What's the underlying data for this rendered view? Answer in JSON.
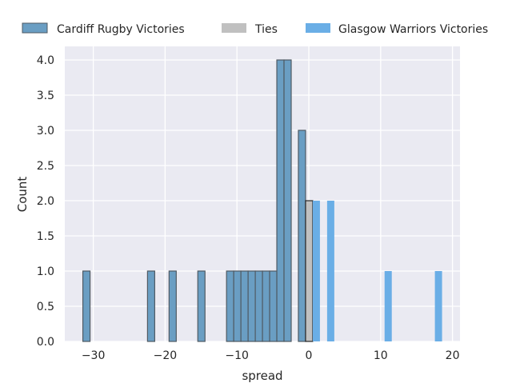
{
  "chart_data": {
    "type": "bar",
    "title": "",
    "xlabel": "spread",
    "ylabel": "Count",
    "xlim": [
      -34,
      21
    ],
    "ylim": [
      0,
      4.2
    ],
    "bin_width": 1,
    "grid": true,
    "legend_position": "top",
    "xticks": [
      -30,
      -20,
      -10,
      0,
      10,
      20
    ],
    "xtick_labels": [
      "−30",
      "−20",
      "−10",
      "0",
      "10",
      "20"
    ],
    "yticks": [
      0,
      0.5,
      1,
      1.5,
      2,
      2.5,
      3,
      3.5,
      4
    ],
    "ytick_labels": [
      "0.0",
      "0.5",
      "1.0",
      "1.5",
      "2.0",
      "2.5",
      "3.0",
      "3.5",
      "4.0"
    ],
    "series": [
      {
        "name": "Cardiff Rugby Victories",
        "color": "#6a9ec3",
        "edge": "#4f5a63",
        "bins": [
          {
            "x": -31,
            "count": 1
          },
          {
            "x": -22,
            "count": 1
          },
          {
            "x": -19,
            "count": 1
          },
          {
            "x": -15,
            "count": 1
          },
          {
            "x": -11,
            "count": 1
          },
          {
            "x": -10,
            "count": 1
          },
          {
            "x": -9,
            "count": 1
          },
          {
            "x": -8,
            "count": 1
          },
          {
            "x": -7,
            "count": 1
          },
          {
            "x": -6,
            "count": 1
          },
          {
            "x": -5,
            "count": 1
          },
          {
            "x": -4,
            "count": 4
          },
          {
            "x": -3,
            "count": 4
          },
          {
            "x": -1,
            "count": 3
          }
        ]
      },
      {
        "name": "Ties",
        "color": "#c0c0c0",
        "edge": "#262626",
        "bins": [
          {
            "x": 0,
            "count": 2
          }
        ]
      },
      {
        "name": "Glasgow Warriors Victories",
        "color": "#6aaee6",
        "edge": "none",
        "bins": [
          {
            "x": 1,
            "count": 2
          },
          {
            "x": 3,
            "count": 2
          },
          {
            "x": 11,
            "count": 1
          },
          {
            "x": 18,
            "count": 1
          }
        ]
      }
    ]
  }
}
